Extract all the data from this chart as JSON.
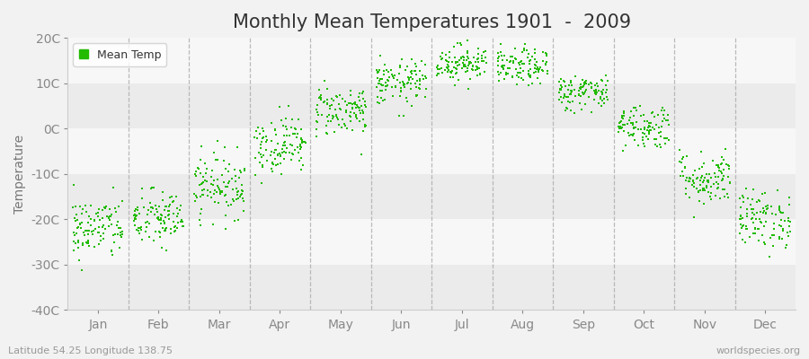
{
  "title": "Monthly Mean Temperatures 1901  -  2009",
  "ylabel": "Temperature",
  "subtitle_left": "Latitude 54.25 Longitude 138.75",
  "subtitle_right": "worldspecies.org",
  "legend_label": "Mean Temp",
  "years": 109,
  "monthly_means": [
    -22.0,
    -20.0,
    -12.5,
    -3.5,
    4.0,
    10.0,
    14.5,
    13.5,
    8.0,
    0.5,
    -11.0,
    -20.0
  ],
  "monthly_stds": [
    3.5,
    3.2,
    3.5,
    3.2,
    2.8,
    2.5,
    2.0,
    2.0,
    2.0,
    2.5,
    3.0,
    3.2
  ],
  "ylim": [
    -40,
    20
  ],
  "yticks": [
    -40,
    -30,
    -20,
    -10,
    0,
    10,
    20
  ],
  "ytick_labels": [
    "-40C",
    "-30C",
    "-20C",
    "-10C",
    "0C",
    "10C",
    "20C"
  ],
  "month_labels": [
    "Jan",
    "Feb",
    "Mar",
    "Apr",
    "May",
    "Jun",
    "Jul",
    "Aug",
    "Sep",
    "Oct",
    "Nov",
    "Dec"
  ],
  "dot_color": "#22BB00",
  "dot_size": 3,
  "fig_bg_color": "#f2f2f2",
  "plot_bg_color": "#ffffff",
  "band_colors": [
    "#ebebeb",
    "#f7f7f7"
  ],
  "dashed_line_color": "#aaaaaa",
  "spine_color": "#cccccc",
  "tick_color": "#888888",
  "title_color": "#333333",
  "label_color": "#777777",
  "legend_edge_color": "#cccccc",
  "title_fontsize": 15,
  "axis_label_fontsize": 10,
  "tick_fontsize": 10,
  "legend_fontsize": 9,
  "subtitle_fontsize": 8
}
